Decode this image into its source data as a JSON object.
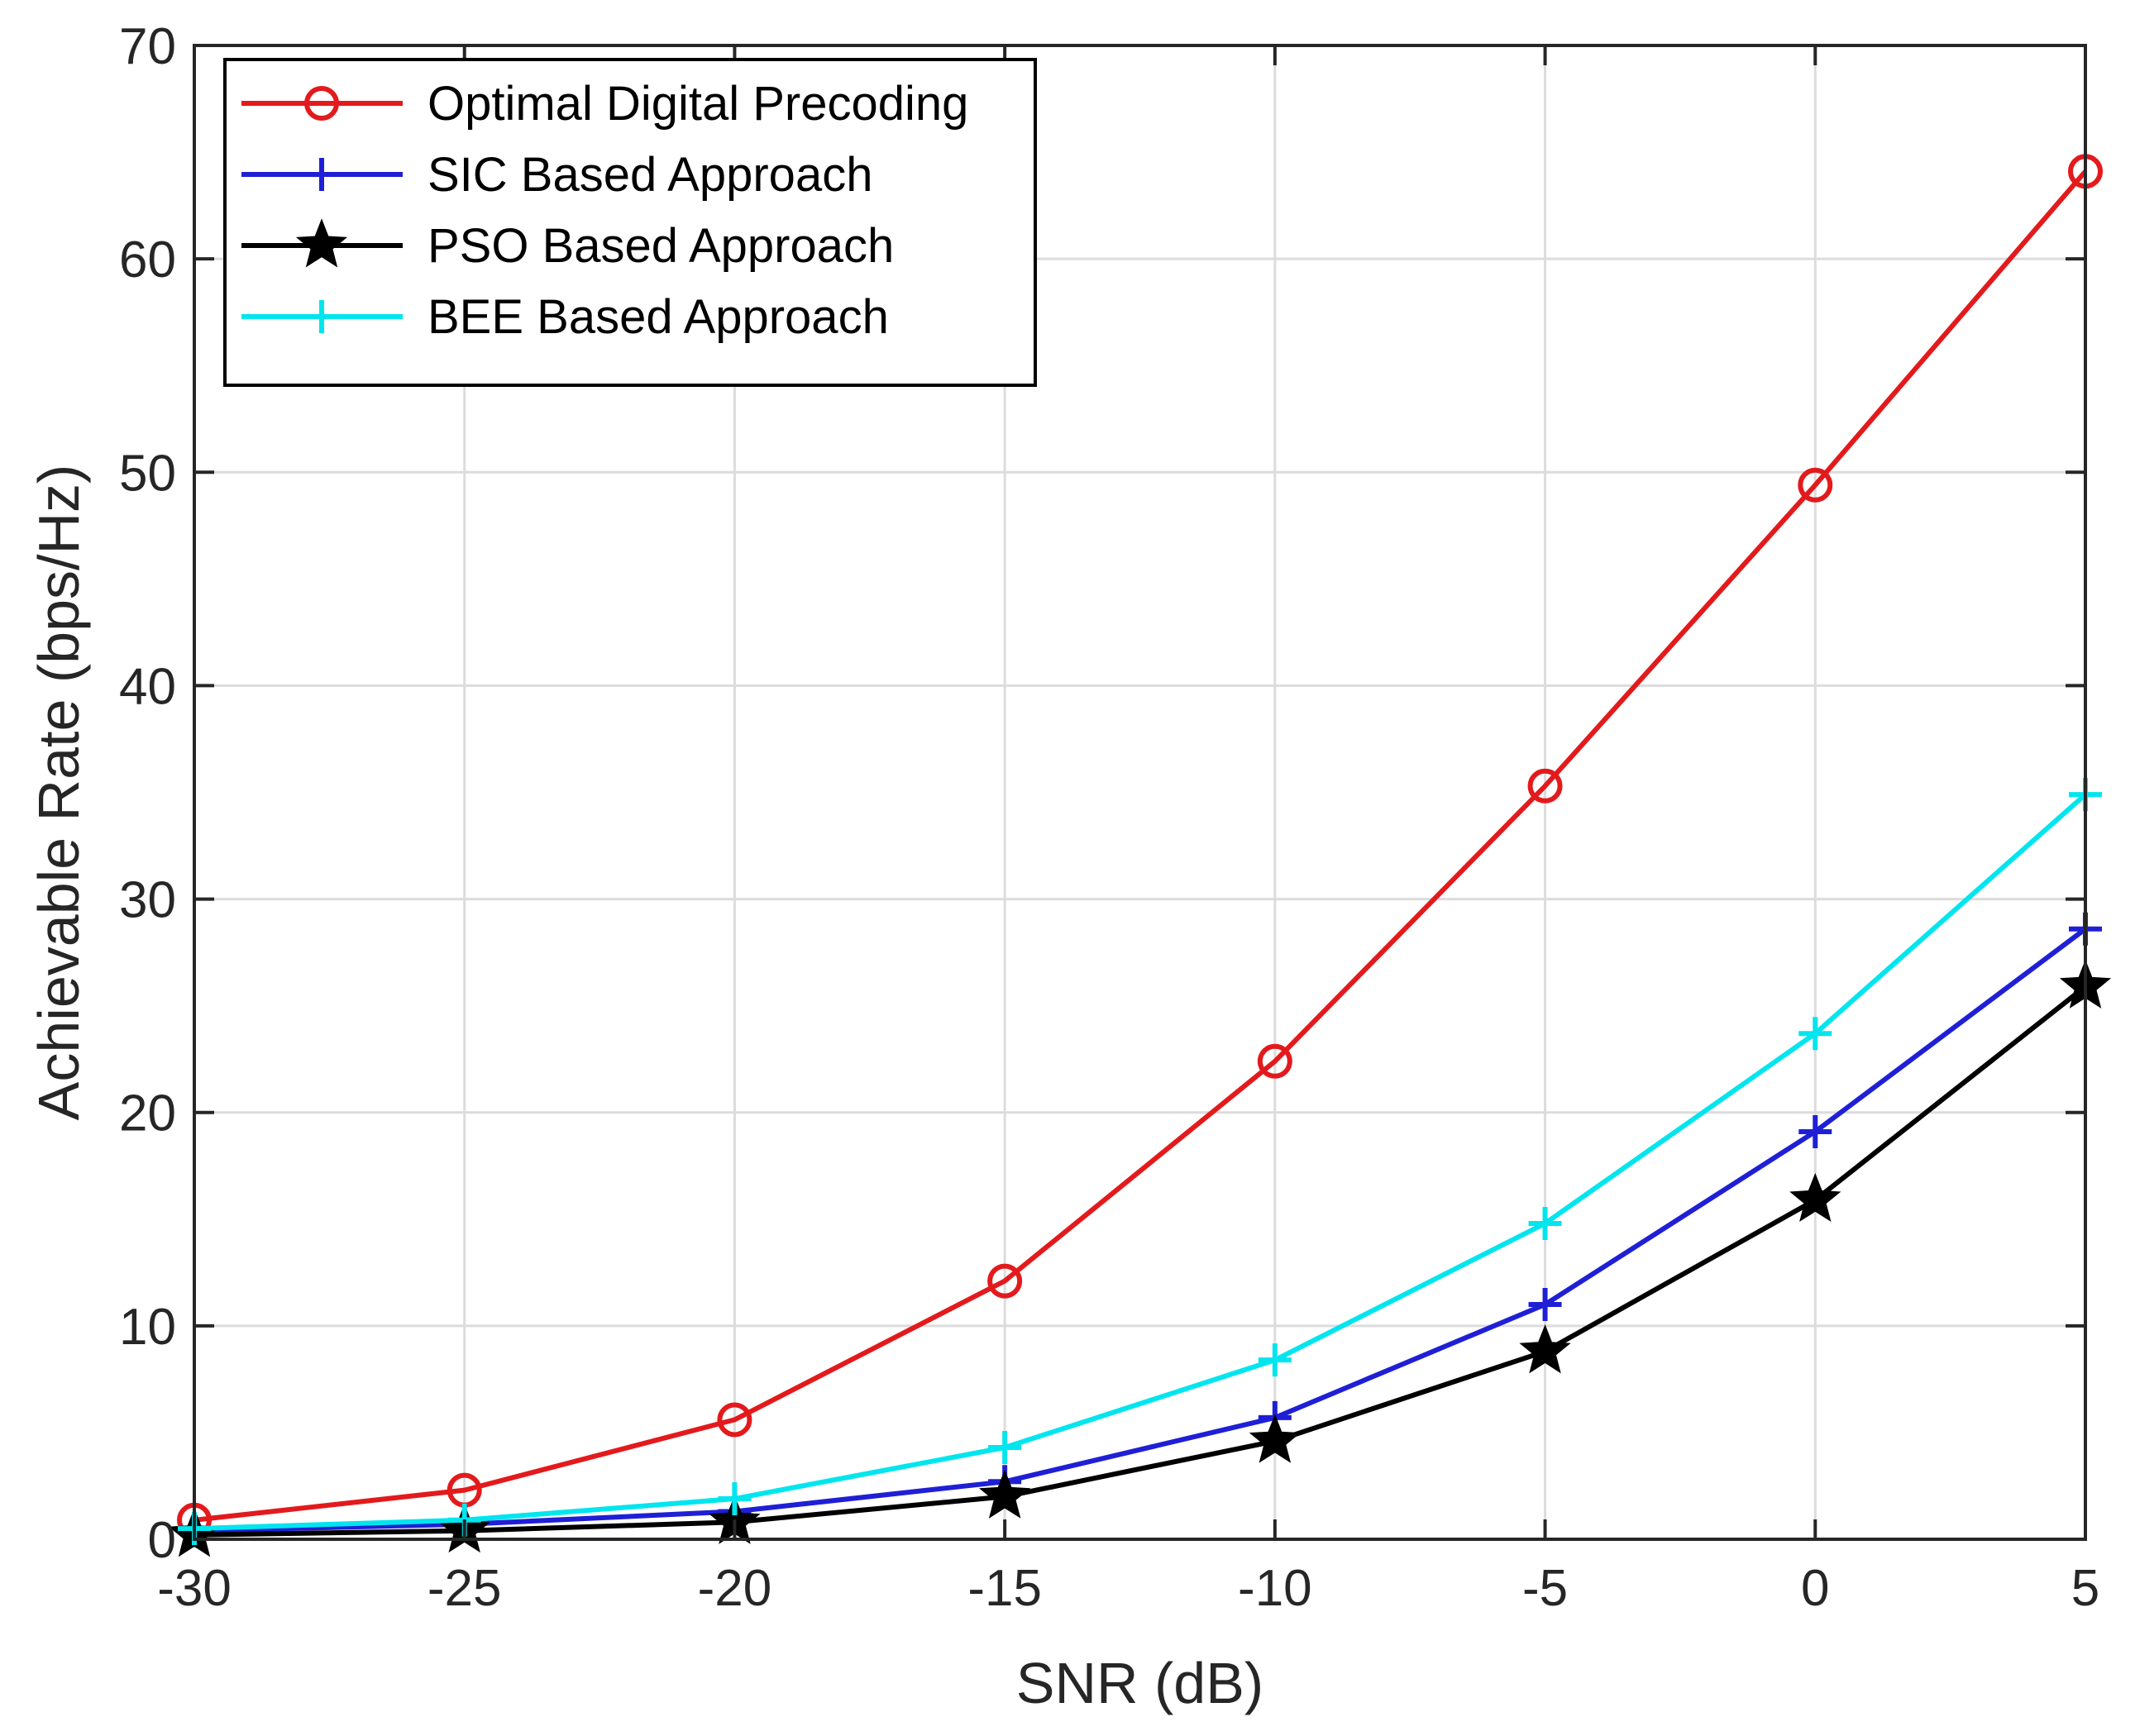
{
  "chart_data": {
    "type": "line",
    "title": "",
    "xlabel": "SNR (dB)",
    "ylabel": "Achievable Rate (bps/Hz)",
    "xlim": [
      -30,
      5
    ],
    "ylim": [
      0,
      70
    ],
    "grid": true,
    "legend_position": "top-left",
    "x": [
      -30,
      -25,
      -20,
      -15,
      -10,
      -5,
      0,
      5
    ],
    "x_ticks": [
      -30,
      -25,
      -20,
      -15,
      -10,
      -5,
      0,
      5
    ],
    "x_tick_labels": [
      "-30",
      "-25",
      "-20",
      "-15",
      "-10",
      "-5",
      "0",
      "5"
    ],
    "y_ticks": [
      0,
      10,
      20,
      30,
      40,
      50,
      60,
      70
    ],
    "y_tick_labels": [
      "0",
      "10",
      "20",
      "30",
      "40",
      "50",
      "60",
      "70"
    ],
    "series": [
      {
        "name": "Optimal Digital Precoding",
        "color": "#e31a1c",
        "marker": "circle",
        "values": [
          0.9,
          2.3,
          5.6,
          12.1,
          22.4,
          35.3,
          49.4,
          64.1
        ]
      },
      {
        "name": "SIC Based Approach",
        "color": "#1f1fd6",
        "marker": "plus",
        "values": [
          0.4,
          0.7,
          1.3,
          2.7,
          5.7,
          11.0,
          19.1,
          28.6
        ]
      },
      {
        "name": "PSO Based Approach",
        "color": "#000000",
        "marker": "star",
        "values": [
          0.2,
          0.4,
          0.8,
          2.0,
          4.6,
          8.8,
          15.9,
          25.9
        ]
      },
      {
        "name": "BEE Based Approach",
        "color": "#00e5ee",
        "marker": "plus",
        "values": [
          0.5,
          0.9,
          1.9,
          4.3,
          8.4,
          14.8,
          23.7,
          34.9
        ]
      }
    ]
  }
}
